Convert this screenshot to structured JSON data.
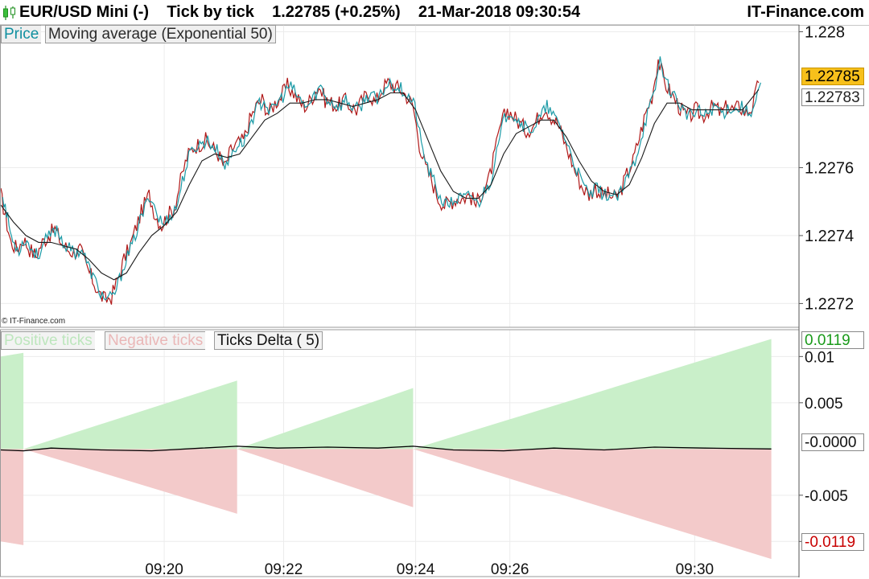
{
  "header": {
    "title": "EUR/USD Mini (-)    Tick by tick    1.22785 (+0.25%)    21-Mar-2018 09:30:54",
    "brand": "IT-Finance.com",
    "icon": "candlestick-icon"
  },
  "watermark": "© IT-Finance.com",
  "colors": {
    "price_line": "#1a9aa6",
    "price_line_dark": "#b01818",
    "moving_average": "#1a1a1a",
    "positive_ticks": "#c9efc9",
    "negative_ticks": "#f3caca",
    "delta_line": "#000000",
    "last_price_tag": "#f7c01b"
  },
  "chart_data": [
    {
      "type": "line",
      "legend": [
        "Price",
        "Moving average (Exponential 50)"
      ],
      "x_ticks": [
        "09:20",
        "09:22",
        "09:24",
        "09:26",
        "09:30"
      ],
      "y_ticks": [
        "1.228",
        "1.2276",
        "1.2274",
        "1.2272"
      ],
      "y_tick_values": [
        1.228,
        1.2276,
        1.2274,
        1.2272
      ],
      "ylim": [
        1.22713,
        1.22802
      ],
      "last_price": "1.22785",
      "ma_value": "1.22783",
      "grid": true,
      "series": [
        {
          "name": "Price",
          "color": "#1a9aa6",
          "points": [
            [
              0.0,
              1.22752
            ],
            [
              0.4,
              1.22745
            ],
            [
              0.8,
              1.22738
            ],
            [
              1.3,
              1.22736
            ],
            [
              1.8,
              1.22739
            ],
            [
              2.3,
              1.22736
            ],
            [
              2.8,
              1.22734
            ],
            [
              3.3,
              1.22738
            ],
            [
              3.8,
              1.2274
            ],
            [
              4.3,
              1.22742
            ],
            [
              4.8,
              1.22738
            ],
            [
              5.3,
              1.22736
            ],
            [
              5.8,
              1.22735
            ],
            [
              6.3,
              1.22736
            ],
            [
              6.8,
              1.22731
            ],
            [
              7.3,
              1.22727
            ],
            [
              7.8,
              1.22723
            ],
            [
              8.3,
              1.22721
            ],
            [
              8.8,
              1.22722
            ],
            [
              9.3,
              1.22727
            ],
            [
              9.8,
              1.22733
            ],
            [
              10.3,
              1.22737
            ],
            [
              10.8,
              1.22743
            ],
            [
              11.3,
              1.22748
            ],
            [
              11.8,
              1.22752
            ],
            [
              12.3,
              1.22746
            ],
            [
              12.8,
              1.22743
            ],
            [
              13.3,
              1.22746
            ],
            [
              13.8,
              1.22748
            ],
            [
              14.3,
              1.22756
            ],
            [
              14.8,
              1.22763
            ],
            [
              15.3,
              1.22766
            ],
            [
              15.8,
              1.22767
            ],
            [
              16.3,
              1.22768
            ],
            [
              16.8,
              1.22766
            ],
            [
              17.3,
              1.22764
            ],
            [
              17.8,
              1.2276
            ],
            [
              18.3,
              1.22765
            ],
            [
              18.8,
              1.22767
            ],
            [
              19.3,
              1.22768
            ],
            [
              19.8,
              1.22774
            ],
            [
              20.3,
              1.22778
            ],
            [
              20.8,
              1.2278
            ],
            [
              21.3,
              1.22776
            ],
            [
              21.8,
              1.22779
            ],
            [
              22.3,
              1.22781
            ],
            [
              22.8,
              1.22784
            ],
            [
              23.3,
              1.22782
            ],
            [
              23.8,
              1.22779
            ],
            [
              24.3,
              1.22778
            ],
            [
              24.8,
              1.22781
            ],
            [
              25.3,
              1.22784
            ],
            [
              25.8,
              1.2278
            ],
            [
              26.3,
              1.22779
            ],
            [
              26.8,
              1.22778
            ],
            [
              27.3,
              1.2278
            ],
            [
              27.8,
              1.22778
            ],
            [
              28.3,
              1.22777
            ],
            [
              28.8,
              1.2278
            ],
            [
              29.3,
              1.22782
            ],
            [
              29.8,
              1.22779
            ],
            [
              30.3,
              1.22783
            ],
            [
              30.8,
              1.22785
            ],
            [
              31.3,
              1.22784
            ],
            [
              31.8,
              1.22783
            ],
            [
              32.3,
              1.22781
            ],
            [
              32.8,
              1.22778
            ],
            [
              33.3,
              1.22767
            ],
            [
              33.8,
              1.2276
            ],
            [
              34.3,
              1.22756
            ],
            [
              34.8,
              1.22751
            ],
            [
              35.3,
              1.22749
            ],
            [
              35.8,
              1.2275
            ],
            [
              36.3,
              1.22751
            ],
            [
              36.8,
              1.22751
            ],
            [
              37.3,
              1.22752
            ],
            [
              37.8,
              1.22749
            ],
            [
              38.3,
              1.22753
            ],
            [
              38.8,
              1.22756
            ],
            [
              39.3,
              1.22764
            ],
            [
              39.8,
              1.22773
            ],
            [
              40.3,
              1.22777
            ],
            [
              40.8,
              1.22775
            ],
            [
              41.3,
              1.22773
            ],
            [
              41.8,
              1.22771
            ],
            [
              42.3,
              1.22772
            ],
            [
              42.8,
              1.22775
            ],
            [
              43.3,
              1.22778
            ],
            [
              43.8,
              1.22775
            ],
            [
              44.3,
              1.22773
            ],
            [
              44.8,
              1.22768
            ],
            [
              45.3,
              1.22763
            ],
            [
              45.8,
              1.22758
            ],
            [
              46.3,
              1.22754
            ],
            [
              46.8,
              1.22752
            ],
            [
              47.3,
              1.22754
            ],
            [
              47.8,
              1.22752
            ],
            [
              48.3,
              1.22752
            ],
            [
              48.8,
              1.22751
            ],
            [
              49.3,
              1.22753
            ],
            [
              49.8,
              1.22758
            ],
            [
              50.3,
              1.22762
            ],
            [
              50.8,
              1.22769
            ],
            [
              51.3,
              1.22776
            ],
            [
              51.8,
              1.22781
            ],
            [
              52.3,
              1.22792
            ],
            [
              52.8,
              1.22785
            ],
            [
              53.3,
              1.22782
            ],
            [
              53.8,
              1.22779
            ],
            [
              54.3,
              1.22776
            ],
            [
              54.8,
              1.22775
            ],
            [
              55.3,
              1.22777
            ],
            [
              55.8,
              1.22775
            ],
            [
              56.3,
              1.22777
            ],
            [
              56.8,
              1.22778
            ],
            [
              57.3,
              1.22776
            ],
            [
              57.8,
              1.22778
            ],
            [
              58.3,
              1.22777
            ],
            [
              58.8,
              1.22778
            ],
            [
              59.3,
              1.22776
            ],
            [
              59.8,
              1.22778
            ],
            [
              60.3,
              1.22785
            ]
          ]
        },
        {
          "name": "Moving average (Exponential 50)",
          "color": "#1a1a1a",
          "points": [
            [
              0.0,
              1.22749
            ],
            [
              1.0,
              1.22744
            ],
            [
              2.0,
              1.2274
            ],
            [
              3.0,
              1.22738
            ],
            [
              4.0,
              1.22738
            ],
            [
              5.0,
              1.22737
            ],
            [
              6.0,
              1.22736
            ],
            [
              7.0,
              1.22733
            ],
            [
              8.0,
              1.22729
            ],
            [
              9.0,
              1.22727
            ],
            [
              10.0,
              1.22729
            ],
            [
              11.0,
              1.22735
            ],
            [
              12.0,
              1.2274
            ],
            [
              13.0,
              1.22743
            ],
            [
              14.0,
              1.22747
            ],
            [
              15.0,
              1.22755
            ],
            [
              16.0,
              1.22762
            ],
            [
              17.0,
              1.22764
            ],
            [
              18.0,
              1.22763
            ],
            [
              19.0,
              1.22764
            ],
            [
              20.0,
              1.22769
            ],
            [
              21.0,
              1.22774
            ],
            [
              22.0,
              1.22776
            ],
            [
              23.0,
              1.22779
            ],
            [
              24.0,
              1.22779
            ],
            [
              25.0,
              1.2278
            ],
            [
              26.0,
              1.2278
            ],
            [
              27.0,
              1.22779
            ],
            [
              28.0,
              1.22778
            ],
            [
              29.0,
              1.22779
            ],
            [
              30.0,
              1.2278
            ],
            [
              31.0,
              1.22782
            ],
            [
              32.0,
              1.22782
            ],
            [
              33.0,
              1.22777
            ],
            [
              34.0,
              1.22768
            ],
            [
              35.0,
              1.22759
            ],
            [
              36.0,
              1.22753
            ],
            [
              37.0,
              1.22751
            ],
            [
              38.0,
              1.22751
            ],
            [
              39.0,
              1.22755
            ],
            [
              40.0,
              1.22764
            ],
            [
              41.0,
              1.2277
            ],
            [
              42.0,
              1.22772
            ],
            [
              43.0,
              1.22774
            ],
            [
              44.0,
              1.22774
            ],
            [
              45.0,
              1.22769
            ],
            [
              46.0,
              1.22762
            ],
            [
              47.0,
              1.22756
            ],
            [
              48.0,
              1.22753
            ],
            [
              49.0,
              1.22752
            ],
            [
              50.0,
              1.22755
            ],
            [
              51.0,
              1.22763
            ],
            [
              52.0,
              1.22773
            ],
            [
              53.0,
              1.22779
            ],
            [
              54.0,
              1.22779
            ],
            [
              55.0,
              1.22777
            ],
            [
              56.0,
              1.22777
            ],
            [
              57.0,
              1.22777
            ],
            [
              58.0,
              1.22777
            ],
            [
              59.0,
              1.22777
            ],
            [
              60.3,
              1.22783
            ]
          ]
        }
      ]
    },
    {
      "type": "area",
      "legend": [
        "Positive ticks",
        "Negative ticks",
        "Ticks Delta ( 5)"
      ],
      "y_ticks": [
        "0.01",
        "0.005",
        "-0.005",
        "-0.01"
      ],
      "y_tick_values": [
        0.01,
        0.005,
        -0.005,
        -0.01
      ],
      "ylim": [
        -0.0138,
        0.0129
      ],
      "max_label": "0.0119",
      "zero_label": "-0.0000",
      "min_label": "-0.0119",
      "segments": [
        {
          "x_start": 0.0,
          "x_end": 1.8,
          "positive": [
            0.01,
            0.0104
          ],
          "negative": [
            -0.01,
            -0.0104
          ]
        },
        {
          "x_start": 1.8,
          "x_end": 18.8,
          "positive": [
            0.0,
            0.0074
          ],
          "negative": [
            0.0,
            -0.007
          ]
        },
        {
          "x_start": 18.8,
          "x_end": 32.8,
          "positive": [
            0.0,
            0.0066
          ],
          "negative": [
            0.0,
            -0.0063
          ]
        },
        {
          "x_start": 32.8,
          "x_end": 61.3,
          "positive": [
            0.0,
            0.0119
          ],
          "negative": [
            0.0,
            -0.0119
          ]
        }
      ],
      "series": [
        {
          "name": "Ticks Delta ( 5)",
          "color": "#000000",
          "points": [
            [
              0.0,
              -0.0001
            ],
            [
              1.8,
              -0.0002
            ],
            [
              4.0,
              0.0001
            ],
            [
              8.0,
              -0.0001
            ],
            [
              12.0,
              -0.0002
            ],
            [
              16.0,
              0.0001
            ],
            [
              18.8,
              0.0003
            ],
            [
              22.0,
              0.0001
            ],
            [
              26.0,
              0.0002
            ],
            [
              30.0,
              0.0001
            ],
            [
              32.8,
              0.0003
            ],
            [
              36.0,
              -0.0001
            ],
            [
              40.0,
              -0.0002
            ],
            [
              44.0,
              0.0001
            ],
            [
              48.0,
              -0.0001
            ],
            [
              52.0,
              0.0002
            ],
            [
              56.0,
              0.0001
            ],
            [
              61.3,
              0.0
            ]
          ]
        }
      ]
    }
  ]
}
